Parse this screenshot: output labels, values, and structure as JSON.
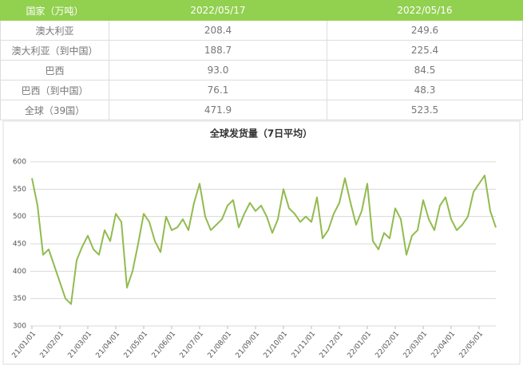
{
  "table": {
    "header": [
      "国家（万吨）",
      "2022/05/17",
      "2022/05/16"
    ],
    "rows": [
      [
        "澳大利亚",
        "208.4",
        "249.6"
      ],
      [
        "澳大利亚（到中国）",
        "188.7",
        "225.4"
      ],
      [
        "巴西",
        "93.0",
        "84.5"
      ],
      [
        "巴西（到中国）",
        "76.1",
        "48.3"
      ],
      [
        "全球（39国）",
        "471.9",
        "523.5"
      ]
    ]
  },
  "chart_data": {
    "type": "line",
    "title": "全球发货量（7日平均）",
    "categories": [
      "21/01/01",
      null,
      null,
      null,
      null,
      "21/02/01",
      null,
      null,
      null,
      null,
      "21/03/01",
      null,
      null,
      null,
      null,
      "21/04/01",
      null,
      null,
      null,
      null,
      "21/05/01",
      null,
      null,
      null,
      null,
      "21/06/01",
      null,
      null,
      null,
      null,
      "21/07/01",
      null,
      null,
      null,
      null,
      "21/08/01",
      null,
      null,
      null,
      null,
      "21/09/01",
      null,
      null,
      null,
      null,
      "21/10/01",
      null,
      null,
      null,
      null,
      "21/11/01",
      null,
      null,
      null,
      null,
      "21/12/01",
      null,
      null,
      null,
      null,
      "22/01/01",
      null,
      null,
      null,
      null,
      "22/02/01",
      null,
      null,
      null,
      null,
      "22/03/01",
      null,
      null,
      null,
      null,
      "22/04/01",
      null,
      null,
      null,
      null,
      "22/05/01",
      null,
      null,
      null
    ],
    "series": [
      {
        "name": "全球发货量",
        "color": "#92bb4f",
        "values": [
          570,
          520,
          430,
          440,
          410,
          380,
          350,
          340,
          420,
          445,
          465,
          440,
          430,
          475,
          455,
          505,
          490,
          370,
          400,
          450,
          505,
          490,
          455,
          435,
          500,
          475,
          480,
          495,
          475,
          525,
          560,
          500,
          475,
          485,
          495,
          520,
          530,
          480,
          505,
          525,
          510,
          520,
          500,
          470,
          495,
          550,
          515,
          505,
          490,
          500,
          490,
          535,
          460,
          475,
          505,
          525,
          570,
          525,
          485,
          510,
          560,
          455,
          440,
          470,
          460,
          515,
          495,
          430,
          465,
          475,
          530,
          495,
          475,
          520,
          535,
          495,
          475,
          485,
          500,
          545,
          560,
          575,
          510,
          480
        ]
      }
    ],
    "ylim": [
      300,
      600
    ],
    "yticks": [
      300,
      350,
      400,
      450,
      500,
      550,
      600
    ],
    "grid": true
  }
}
